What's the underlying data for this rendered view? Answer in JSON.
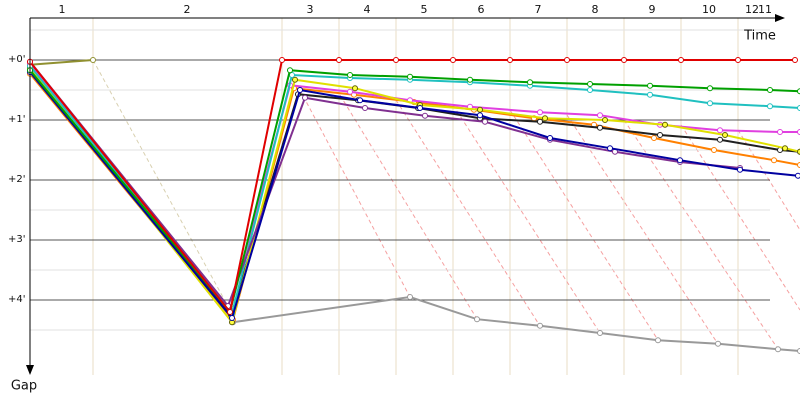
{
  "chart_data": {
    "type": "line",
    "x_label": "Time",
    "y_label": "Gap",
    "xlim": [
      0,
      770
    ],
    "ylim": [
      -0.7,
      5.25
    ],
    "xticks": [
      {
        "value": 32,
        "label": "1"
      },
      {
        "value": 157,
        "label": "2"
      },
      {
        "value": 280,
        "label": "3"
      },
      {
        "value": 337,
        "label": "4"
      },
      {
        "value": 394,
        "label": "5"
      },
      {
        "value": 451,
        "label": "6"
      },
      {
        "value": 508,
        "label": "7"
      },
      {
        "value": 565,
        "label": "8"
      },
      {
        "value": 622,
        "label": "9"
      },
      {
        "value": 679,
        "label": "10"
      },
      {
        "value": 722,
        "label": "12"
      },
      {
        "value": 735,
        "label": "11"
      }
    ],
    "yticks": [
      {
        "value": 0,
        "label": "+0'"
      },
      {
        "value": 1,
        "label": "+1'"
      },
      {
        "value": 2,
        "label": "+2'"
      },
      {
        "value": 3,
        "label": "+3'"
      },
      {
        "value": 4,
        "label": "+4'"
      }
    ],
    "minor_yticks": [
      -0.5,
      0.5,
      1.5,
      2.5,
      3.5,
      4.5
    ],
    "grid": true,
    "series": [
      {
        "color": "#909030",
        "x": [
          0,
          63
        ],
        "values": [
          0.08,
          0
        ]
      },
      {
        "color": "#999999",
        "x": [
          203,
          380,
          447,
          510,
          570,
          628,
          688,
          748,
          770
        ],
        "values": [
          4.37,
          3.95,
          4.32,
          4.43,
          4.55,
          4.67,
          4.73,
          4.82,
          4.85
        ]
      },
      {
        "color": "#ff8000",
        "x": [
          0,
          203,
          264,
          324,
          384,
          444,
          504,
          564,
          624,
          684,
          744,
          770
        ],
        "values": [
          0.23,
          4.33,
          0.47,
          0.58,
          0.7,
          0.83,
          0.97,
          1.08,
          1.3,
          1.5,
          1.67,
          1.75
        ]
      },
      {
        "color": "#202020",
        "x": [
          0,
          201,
          268,
          328,
          388,
          450,
          510,
          570,
          630,
          690,
          750,
          770
        ],
        "values": [
          0.17,
          4.27,
          0.57,
          0.67,
          0.8,
          0.97,
          1.03,
          1.13,
          1.25,
          1.33,
          1.5,
          1.53
        ]
      },
      {
        "color": "#e040e0",
        "x": [
          0,
          200,
          260,
          320,
          380,
          440,
          510,
          570,
          630,
          690,
          750,
          770
        ],
        "values": [
          0.07,
          4.17,
          0.42,
          0.53,
          0.67,
          0.78,
          0.87,
          0.92,
          1.08,
          1.17,
          1.2,
          1.2
        ]
      },
      {
        "color": "#e0e000",
        "x": [
          0,
          202,
          265,
          325,
          390,
          450,
          515,
          575,
          635,
          695,
          755,
          770
        ],
        "values": [
          0.13,
          4.37,
          0.33,
          0.47,
          0.75,
          0.83,
          0.97,
          1.0,
          1.08,
          1.25,
          1.47,
          1.53
        ]
      },
      {
        "color": "#20c0c0",
        "x": [
          0,
          202,
          262,
          320,
          380,
          440,
          500,
          560,
          620,
          680,
          740,
          770
        ],
        "values": [
          0.1,
          4.23,
          0.25,
          0.3,
          0.33,
          0.37,
          0.43,
          0.5,
          0.58,
          0.72,
          0.77,
          0.8
        ]
      },
      {
        "color": "#803090",
        "x": [
          0,
          198,
          275,
          335,
          395,
          455,
          520,
          585,
          650,
          710
        ],
        "values": [
          0.03,
          4.1,
          0.63,
          0.8,
          0.93,
          1.03,
          1.33,
          1.53,
          1.7,
          1.8
        ]
      },
      {
        "color": "#0000a0",
        "x": [
          0,
          202,
          270,
          330,
          390,
          450,
          520,
          580,
          650,
          710,
          768
        ],
        "values": [
          0.2,
          4.3,
          0.5,
          0.67,
          0.8,
          0.92,
          1.3,
          1.47,
          1.67,
          1.83,
          1.93
        ]
      },
      {
        "color": "#00a000",
        "x": [
          0,
          200,
          260,
          320,
          380,
          440,
          500,
          560,
          620,
          680,
          740,
          770
        ],
        "values": [
          0.17,
          4.2,
          0.17,
          0.25,
          0.28,
          0.33,
          0.37,
          0.4,
          0.43,
          0.47,
          0.5,
          0.52
        ]
      },
      {
        "color": "#e00000",
        "x": [
          0,
          200,
          252,
          309,
          366,
          423,
          480,
          537,
          594,
          651,
          708,
          765
        ],
        "values": [
          0.03,
          4.2,
          0,
          0,
          0,
          0,
          0,
          0,
          0,
          0,
          0,
          0
        ]
      }
    ]
  }
}
